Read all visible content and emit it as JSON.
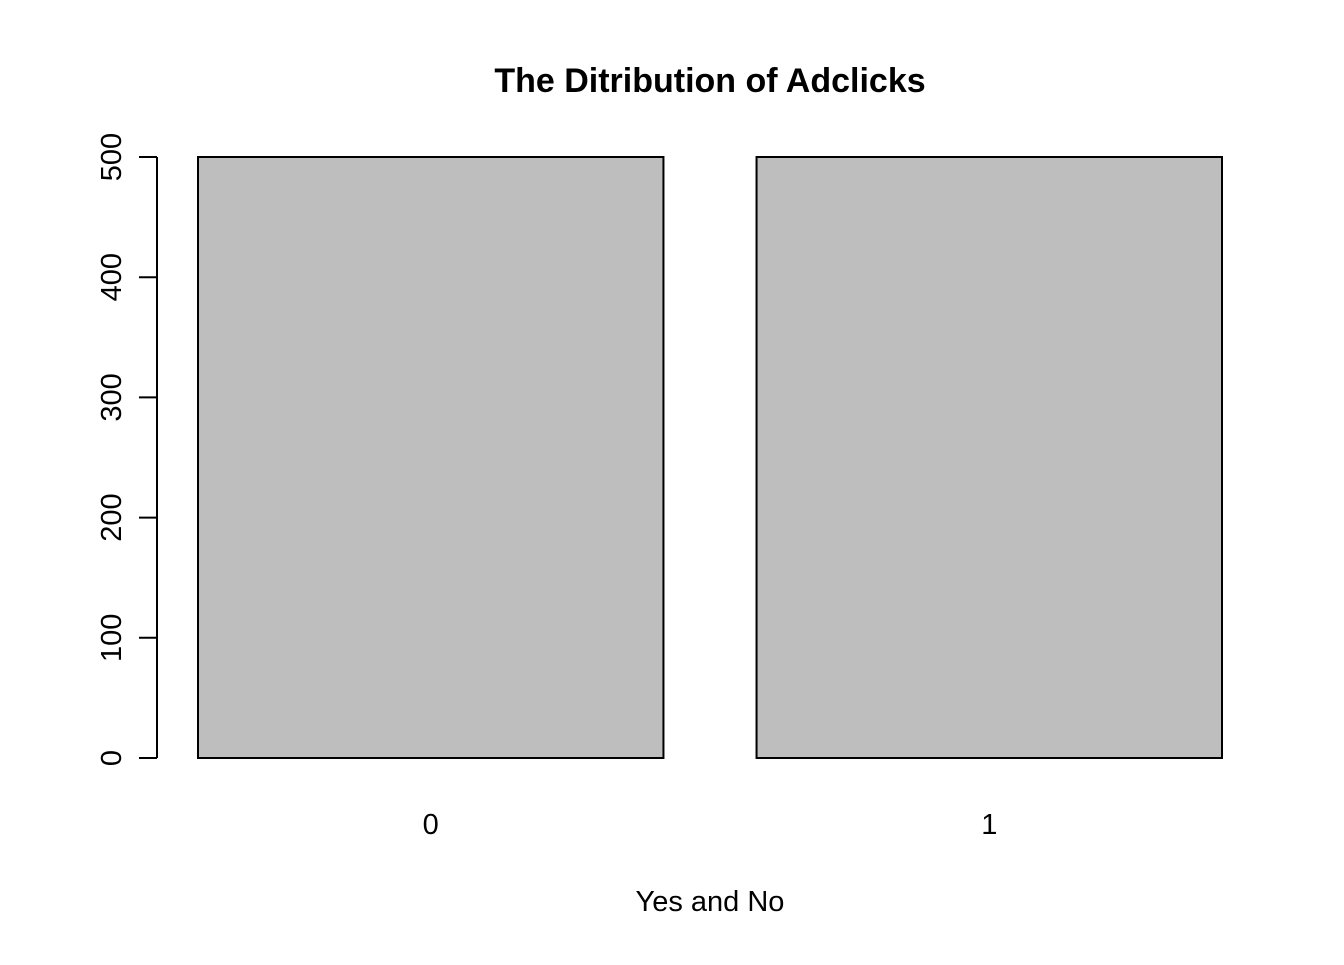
{
  "chart_data": {
    "type": "bar",
    "title": "The Ditribution of Adclicks",
    "xlabel": "Yes and No",
    "ylabel": "",
    "categories": [
      "0",
      "1"
    ],
    "values": [
      500,
      500
    ],
    "ylim": [
      0,
      500
    ],
    "yticks": [
      "0",
      "100",
      "200",
      "300",
      "400",
      "500"
    ],
    "ytick_values": [
      0,
      100,
      200,
      300,
      400,
      500
    ],
    "bar_color": "#bebebe",
    "bar_border_color": "#000000",
    "grid": false,
    "legend": "none"
  }
}
